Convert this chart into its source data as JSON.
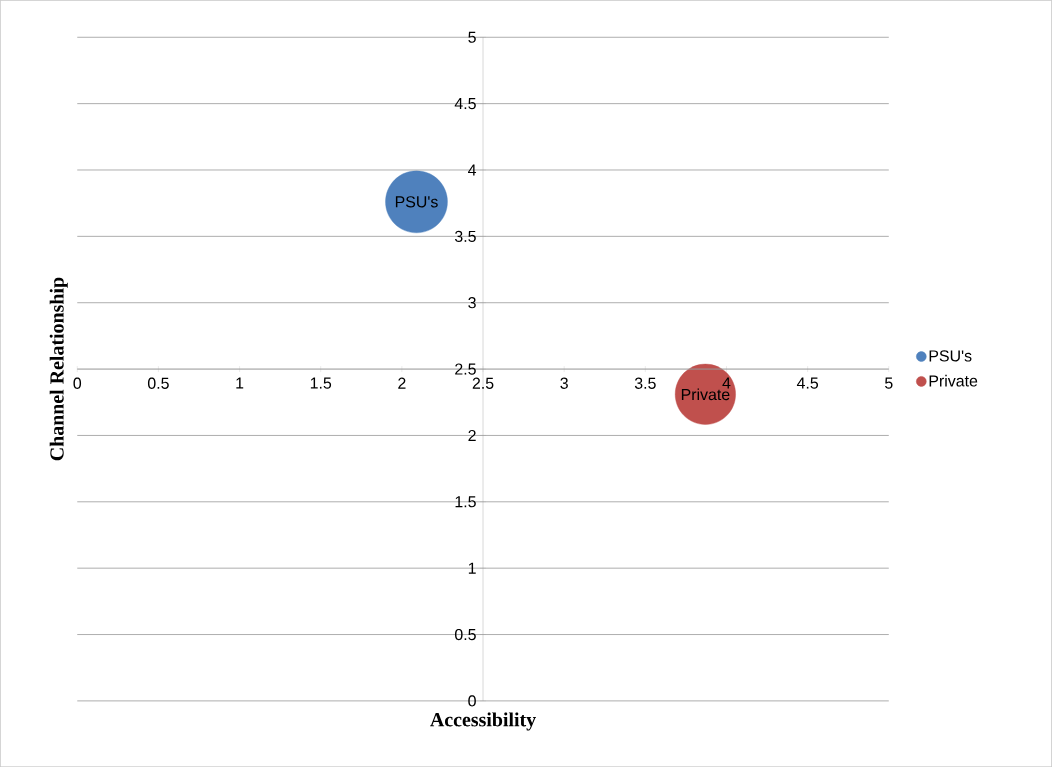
{
  "chart_data": {
    "type": "bubble",
    "xlabel": "Accessibility",
    "ylabel": "Channel Relationship",
    "xlim": [
      0,
      5
    ],
    "ylim": [
      0,
      5
    ],
    "xticks": [
      0,
      0.5,
      1,
      1.5,
      2,
      2.5,
      3,
      3.5,
      4,
      4.5,
      5
    ],
    "yticks": [
      0,
      0.5,
      1,
      1.5,
      2,
      2.5,
      3,
      3.5,
      4,
      4.5,
      5
    ],
    "grid": "y",
    "legend": "right",
    "series": [
      {
        "name": "PSU's",
        "color": "#4f81bd",
        "x": [
          2.09
        ],
        "values": [
          3.76
        ],
        "sizes": [
          1
        ]
      },
      {
        "name": "Private",
        "color": "#c0504d",
        "x": [
          3.87
        ],
        "values": [
          2.31
        ],
        "sizes": [
          0.95
        ]
      }
    ]
  }
}
